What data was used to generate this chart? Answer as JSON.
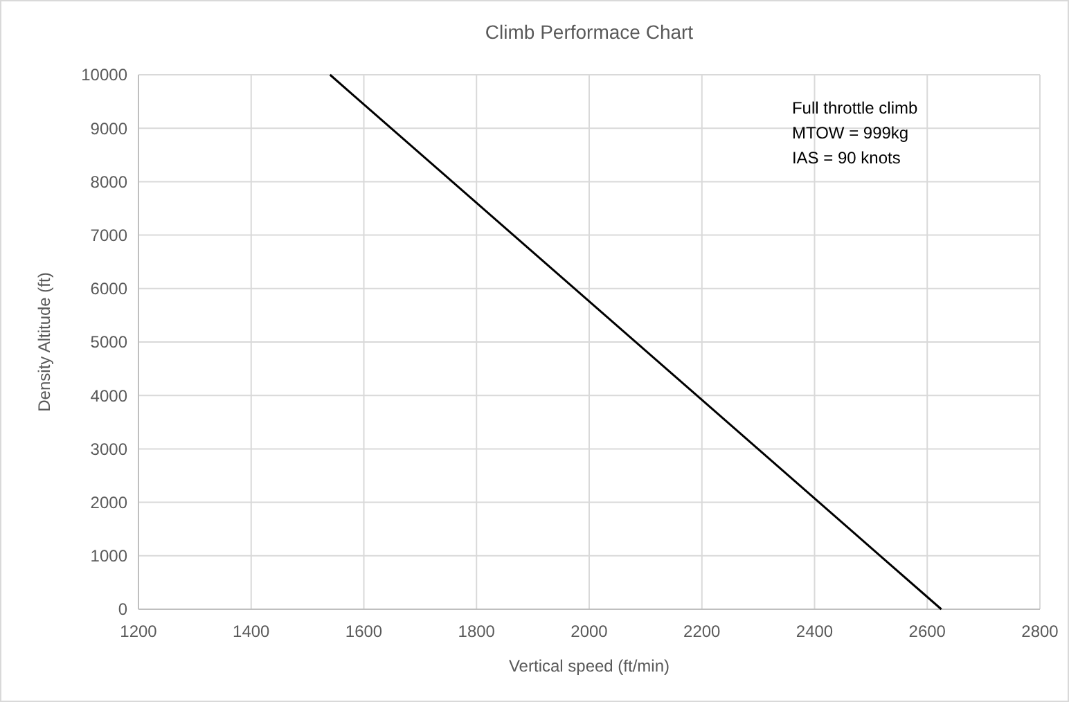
{
  "chart_data": {
    "type": "line",
    "title": "Climb Performace Chart",
    "xlabel": "Vertical speed (ft/min)",
    "ylabel": "Density Altitude (ft)",
    "annotations": [
      "Full throttle climb\nMTOW = 999kg\nIAS = 90 knots"
    ],
    "series": [
      {
        "color": "#000000",
        "x": [
          1540,
          2625
        ],
        "values": [
          10000,
          0
        ]
      }
    ],
    "xlim": [
      1200,
      2800
    ],
    "xticks": [
      1200,
      1400,
      1600,
      1800,
      2000,
      2200,
      2400,
      2600,
      2800
    ],
    "ylim": [
      0,
      10000
    ],
    "yticks": [
      0,
      1000,
      2000,
      3000,
      4000,
      5000,
      6000,
      7000,
      8000,
      9000,
      10000
    ],
    "grid": true,
    "marker": "none",
    "line_style": "solid"
  }
}
